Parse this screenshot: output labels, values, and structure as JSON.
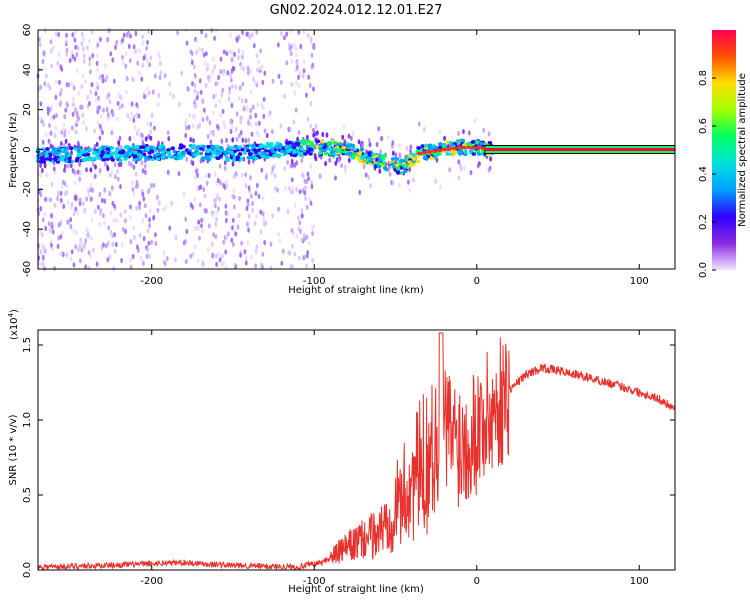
{
  "title": "GN02.2024.012.12.01.E27",
  "chart_data": [
    {
      "type": "heatmap",
      "xlabel": "Height of straight line (km)",
      "ylabel": "Frequency (Hz)",
      "xlim": [
        -270,
        122
      ],
      "ylim": [
        -60,
        60
      ],
      "xticks": [
        -200,
        -100,
        0,
        100
      ],
      "xtick_labels": [
        "-200",
        "-100",
        "0",
        "100"
      ],
      "yticks": [
        60,
        40,
        20,
        0,
        -20,
        -40,
        -60
      ],
      "ytick_labels": [
        "60",
        "40",
        "20",
        "0",
        "-20",
        "-40",
        "-60"
      ],
      "colorbar": {
        "label": "Normalized spectral amplitude",
        "range": [
          0,
          1
        ],
        "ticks": [
          0.0,
          0.2,
          0.4,
          0.6,
          0.8
        ],
        "tick_labels": [
          "0.0",
          "0.2",
          "0.4",
          "0.6",
          "0.8"
        ],
        "stops": [
          "#f0e6ff",
          "#8a2be2",
          "#3000ff",
          "#00a0ff",
          "#00e0e0",
          "#00ff60",
          "#a0ff00",
          "#ffe000",
          "#ff5000",
          "#ff0050"
        ]
      },
      "ridge": {
        "x": [
          -270,
          -220,
          -180,
          -150,
          -120,
          -100,
          -80,
          -60,
          -45,
          -35,
          -20,
          -10,
          0,
          10,
          122
        ],
        "frequency": [
          -3,
          -2,
          -1,
          -2,
          0,
          1,
          0,
          -6,
          -9,
          -2,
          0,
          1,
          1,
          0,
          0
        ]
      }
    },
    {
      "type": "line",
      "xlabel": "Height of straight line (km)",
      "ylabel": "SNR (10 * v/v)",
      "scale_label": "(x10",
      "scale_exponent": "4",
      "xlim": [
        -270,
        122
      ],
      "ylim": [
        0,
        1.6
      ],
      "xticks": [
        -200,
        -100,
        0,
        100
      ],
      "xtick_labels": [
        "-200",
        "-100",
        "0",
        "100"
      ],
      "yticks": [
        0.0,
        0.5,
        1.0,
        1.5
      ],
      "ytick_labels": [
        "0.0",
        "0.5",
        "1.0",
        "1.5"
      ],
      "series": [
        {
          "name": "SNR",
          "color": "#e8312c",
          "x": [
            -270,
            -230,
            -180,
            -150,
            -110,
            -95,
            -80,
            -60,
            -45,
            -30,
            -20,
            -15,
            -10,
            0,
            10,
            20,
            30,
            40,
            50,
            70,
            90,
            110,
            122
          ],
          "y": [
            0.02,
            0.03,
            0.05,
            0.03,
            0.02,
            0.05,
            0.15,
            0.25,
            0.5,
            0.75,
            0.95,
            0.9,
            0.85,
            0.95,
            1.05,
            1.2,
            1.3,
            1.35,
            1.33,
            1.28,
            1.22,
            1.15,
            1.08
          ]
        }
      ]
    }
  ]
}
